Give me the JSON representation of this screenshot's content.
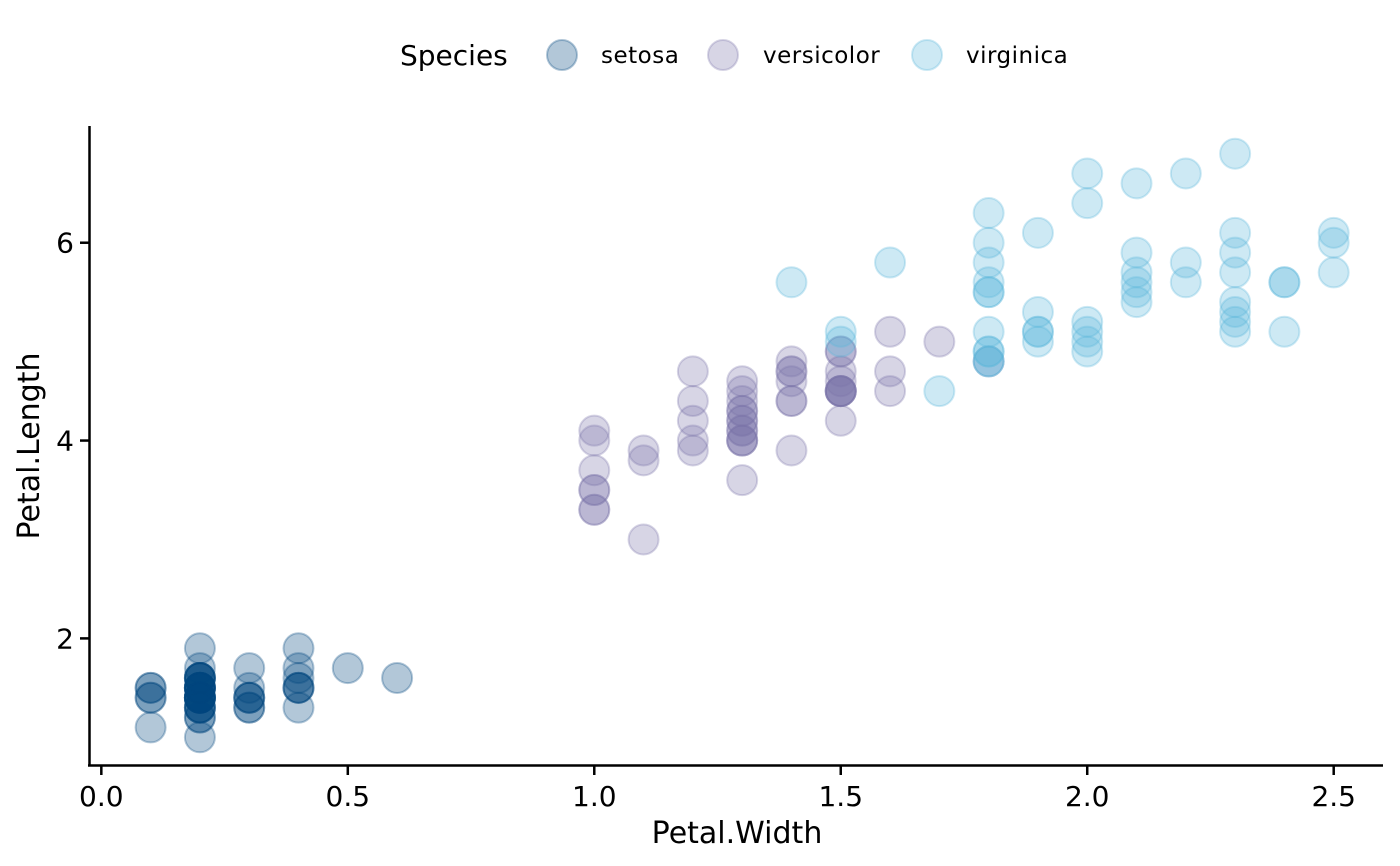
{
  "chart_data": {
    "type": "scatter",
    "xlabel": "Petal.Width",
    "ylabel": "Petal.Length",
    "xlim": [
      -0.025,
      2.6
    ],
    "ylim": [
      0.71,
      7.18
    ],
    "x_ticks": [
      0.0,
      0.5,
      1.0,
      1.5,
      2.0,
      2.5
    ],
    "x_tick_labels": [
      "0.0",
      "0.5",
      "1.0",
      "1.5",
      "2.0",
      "2.5"
    ],
    "y_ticks": [
      2,
      4,
      6
    ],
    "y_tick_labels": [
      "2",
      "4",
      "6"
    ],
    "grid": false,
    "legend": {
      "title": "Species",
      "position": "top"
    },
    "point_opacity": 0.3,
    "series": [
      {
        "name": "setosa",
        "color": "#00467F",
        "points": [
          [
            0.2,
            1.4
          ],
          [
            0.2,
            1.4
          ],
          [
            0.2,
            1.3
          ],
          [
            0.2,
            1.5
          ],
          [
            0.2,
            1.4
          ],
          [
            0.4,
            1.7
          ],
          [
            0.3,
            1.4
          ],
          [
            0.2,
            1.5
          ],
          [
            0.2,
            1.4
          ],
          [
            0.1,
            1.5
          ],
          [
            0.2,
            1.5
          ],
          [
            0.2,
            1.6
          ],
          [
            0.1,
            1.4
          ],
          [
            0.1,
            1.1
          ],
          [
            0.2,
            1.2
          ],
          [
            0.4,
            1.5
          ],
          [
            0.4,
            1.3
          ],
          [
            0.3,
            1.4
          ],
          [
            0.3,
            1.7
          ],
          [
            0.3,
            1.5
          ],
          [
            0.2,
            1.7
          ],
          [
            0.4,
            1.5
          ],
          [
            0.2,
            1.0
          ],
          [
            0.5,
            1.7
          ],
          [
            0.2,
            1.9
          ],
          [
            0.2,
            1.6
          ],
          [
            0.4,
            1.6
          ],
          [
            0.2,
            1.5
          ],
          [
            0.2,
            1.4
          ],
          [
            0.2,
            1.6
          ],
          [
            0.2,
            1.6
          ],
          [
            0.4,
            1.5
          ],
          [
            0.1,
            1.5
          ],
          [
            0.2,
            1.4
          ],
          [
            0.2,
            1.5
          ],
          [
            0.2,
            1.2
          ],
          [
            0.2,
            1.3
          ],
          [
            0.1,
            1.4
          ],
          [
            0.2,
            1.3
          ],
          [
            0.2,
            1.5
          ],
          [
            0.3,
            1.3
          ],
          [
            0.3,
            1.3
          ],
          [
            0.2,
            1.3
          ],
          [
            0.6,
            1.6
          ],
          [
            0.4,
            1.9
          ],
          [
            0.3,
            1.4
          ],
          [
            0.2,
            1.6
          ],
          [
            0.2,
            1.4
          ],
          [
            0.2,
            1.5
          ],
          [
            0.2,
            1.4
          ]
        ]
      },
      {
        "name": "versicolor",
        "color": "#7B73A8",
        "points": [
          [
            1.4,
            4.7
          ],
          [
            1.5,
            4.5
          ],
          [
            1.5,
            4.9
          ],
          [
            1.3,
            4.0
          ],
          [
            1.5,
            4.6
          ],
          [
            1.3,
            4.5
          ],
          [
            1.6,
            4.7
          ],
          [
            1.0,
            3.3
          ],
          [
            1.3,
            4.6
          ],
          [
            1.4,
            3.9
          ],
          [
            1.0,
            3.5
          ],
          [
            1.5,
            4.2
          ],
          [
            1.0,
            4.0
          ],
          [
            1.4,
            4.7
          ],
          [
            1.3,
            3.6
          ],
          [
            1.4,
            4.4
          ],
          [
            1.5,
            4.5
          ],
          [
            1.0,
            4.1
          ],
          [
            1.5,
            4.5
          ],
          [
            1.1,
            3.9
          ],
          [
            1.8,
            4.8
          ],
          [
            1.3,
            4.0
          ],
          [
            1.5,
            4.9
          ],
          [
            1.2,
            4.7
          ],
          [
            1.3,
            4.3
          ],
          [
            1.4,
            4.4
          ],
          [
            1.4,
            4.8
          ],
          [
            1.7,
            5.0
          ],
          [
            1.5,
            4.5
          ],
          [
            1.0,
            3.5
          ],
          [
            1.1,
            3.8
          ],
          [
            1.0,
            3.7
          ],
          [
            1.2,
            3.9
          ],
          [
            1.6,
            5.1
          ],
          [
            1.5,
            4.5
          ],
          [
            1.6,
            4.5
          ],
          [
            1.5,
            4.7
          ],
          [
            1.3,
            4.4
          ],
          [
            1.3,
            4.1
          ],
          [
            1.3,
            4.0
          ],
          [
            1.2,
            4.4
          ],
          [
            1.4,
            4.6
          ],
          [
            1.2,
            4.0
          ],
          [
            1.0,
            3.3
          ],
          [
            1.3,
            4.2
          ],
          [
            1.2,
            4.2
          ],
          [
            1.3,
            4.2
          ],
          [
            1.3,
            4.3
          ],
          [
            1.1,
            3.0
          ],
          [
            1.3,
            4.1
          ]
        ]
      },
      {
        "name": "virginica",
        "color": "#5BB5DA",
        "points": [
          [
            2.5,
            6.0
          ],
          [
            1.9,
            5.1
          ],
          [
            2.1,
            5.9
          ],
          [
            1.8,
            5.6
          ],
          [
            2.2,
            5.8
          ],
          [
            2.1,
            6.6
          ],
          [
            1.7,
            4.5
          ],
          [
            1.8,
            6.3
          ],
          [
            1.8,
            5.8
          ],
          [
            2.5,
            6.1
          ],
          [
            2.0,
            5.1
          ],
          [
            1.9,
            5.3
          ],
          [
            2.1,
            5.5
          ],
          [
            2.0,
            5.0
          ],
          [
            2.4,
            5.1
          ],
          [
            2.3,
            5.3
          ],
          [
            1.8,
            5.5
          ],
          [
            2.2,
            6.7
          ],
          [
            2.3,
            6.9
          ],
          [
            1.5,
            5.0
          ],
          [
            2.3,
            5.7
          ],
          [
            2.0,
            4.9
          ],
          [
            2.0,
            6.7
          ],
          [
            1.8,
            4.9
          ],
          [
            2.1,
            5.7
          ],
          [
            1.8,
            6.0
          ],
          [
            1.8,
            4.8
          ],
          [
            1.8,
            4.9
          ],
          [
            2.1,
            5.6
          ],
          [
            1.6,
            5.8
          ],
          [
            1.9,
            6.1
          ],
          [
            2.0,
            6.4
          ],
          [
            2.2,
            5.6
          ],
          [
            1.5,
            5.1
          ],
          [
            1.4,
            5.6
          ],
          [
            2.3,
            6.1
          ],
          [
            2.4,
            5.6
          ],
          [
            1.8,
            5.5
          ],
          [
            1.8,
            4.8
          ],
          [
            2.1,
            5.4
          ],
          [
            2.4,
            5.6
          ],
          [
            2.3,
            5.1
          ],
          [
            1.9,
            5.1
          ],
          [
            2.3,
            5.9
          ],
          [
            2.5,
            5.7
          ],
          [
            2.3,
            5.2
          ],
          [
            1.9,
            5.0
          ],
          [
            2.0,
            5.2
          ],
          [
            2.3,
            5.4
          ],
          [
            1.8,
            5.1
          ]
        ]
      }
    ]
  }
}
